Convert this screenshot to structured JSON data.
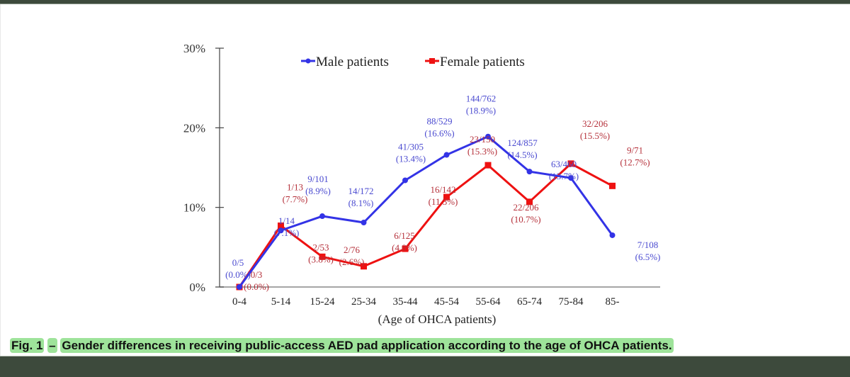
{
  "chart_data": {
    "type": "line",
    "title": "",
    "xlabel": "(Age of OHCA patients)",
    "ylabel": "",
    "ylim": [
      0,
      30
    ],
    "yticks": [
      "0%",
      "10%",
      "20%",
      "30%"
    ],
    "ytick_values": [
      0,
      10,
      20,
      30
    ],
    "grid": false,
    "legend_position": "top-center",
    "categories": [
      "0-4",
      "5-14",
      "15-24",
      "25-34",
      "35-44",
      "45-54",
      "55-64",
      "65-74",
      "75-84",
      "85-"
    ],
    "series": [
      {
        "name": "Male patients",
        "color": "#3333e6",
        "marker": "circle",
        "values": [
          0.0,
          7.1,
          8.9,
          8.1,
          13.4,
          16.6,
          18.9,
          14.5,
          13.7,
          6.5
        ],
        "labels": [
          [
            "0/5",
            "(0.0%)"
          ],
          [
            "1/14",
            "(7.1%)"
          ],
          [
            "9/101",
            "(8.9%)"
          ],
          [
            "14/172",
            "(8.1%)"
          ],
          [
            "41/305",
            "(13.4%)"
          ],
          [
            "88/529",
            "(16.6%)"
          ],
          [
            "144/762",
            "(18.9%)"
          ],
          [
            "124/857",
            "(14.5%)"
          ],
          [
            "63/460",
            "(13.7%)"
          ],
          [
            "7/108",
            "(6.5%)"
          ]
        ]
      },
      {
        "name": "Female patients",
        "color": "#ee1111",
        "marker": "square",
        "values": [
          0.0,
          7.7,
          3.8,
          2.6,
          4.8,
          11.3,
          15.3,
          10.7,
          15.5,
          12.7
        ],
        "labels": [
          [
            "0/3",
            "(0.0%)"
          ],
          [
            "1/13",
            "(7.7%)"
          ],
          [
            "2/53",
            "(3.8%)"
          ],
          [
            "2/76",
            "(2.6%)"
          ],
          [
            "6/125",
            "(4.8%)"
          ],
          [
            "16/142",
            "(11.3%)"
          ],
          [
            "23/150",
            "(15.3%)"
          ],
          [
            "22/206",
            "(10.7%)"
          ],
          [
            "32/206",
            "(15.5%)"
          ],
          [
            "9/71",
            "(12.7%)"
          ]
        ]
      }
    ],
    "label_colors": {
      "male": "#4a4ad0",
      "female": "#b5303a"
    }
  },
  "caption": {
    "fig_label": "Fig. 1",
    "dash": "–",
    "text": "Gender differences in receiving public-access AED pad application according to the age of OHCA patients."
  }
}
